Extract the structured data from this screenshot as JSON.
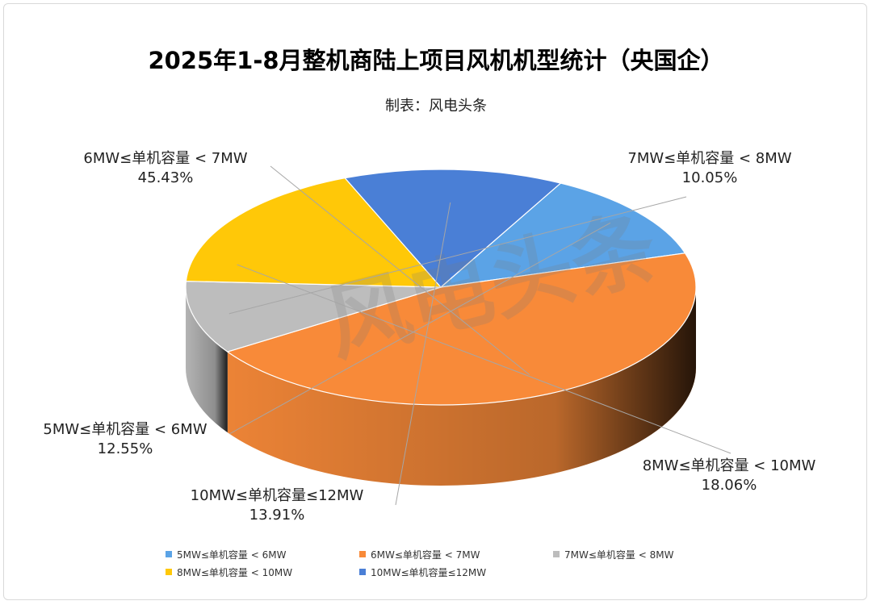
{
  "title": "2025年1-8月整机商陆上项目风机机型统计（央国企）",
  "subtitle": "制表：风电头条",
  "watermark": "风电头条",
  "chart_data": {
    "type": "pie",
    "variant": "3d",
    "title": "2025年1-8月整机商陆上项目风机机型统计（央国企）",
    "subtitle": "制表：风电头条",
    "legend_position": "bottom",
    "slices": [
      {
        "label": "5MW≤单机容量 < 6MW",
        "value": 12.55,
        "value_label": "12.55%",
        "color": "#5BA3E6"
      },
      {
        "label": "6MW≤单机容量 < 7MW",
        "value": 45.43,
        "value_label": "45.43%",
        "color": "#F88A39"
      },
      {
        "label": "7MW≤单机容量 < 8MW",
        "value": 10.05,
        "value_label": "10.05%",
        "color": "#BDBDBD"
      },
      {
        "label": "8MW≤单机容量 < 10MW",
        "value": 18.06,
        "value_label": "18.06%",
        "color": "#FFC808"
      },
      {
        "label": "10MW≤单机容量≤12MW",
        "value": 13.91,
        "value_label": "13.91%",
        "color": "#4A7FD6"
      }
    ]
  }
}
